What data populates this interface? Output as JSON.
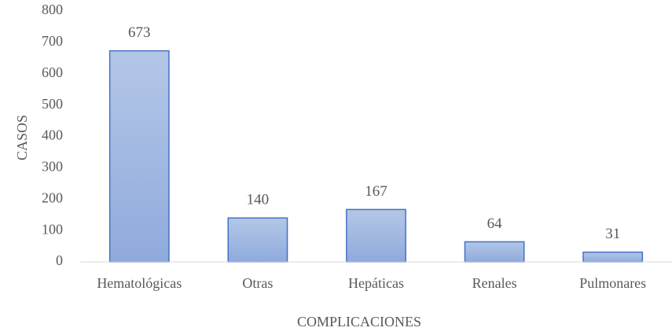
{
  "chart_data": {
    "type": "bar",
    "categories": [
      "Hematológicas",
      "Otras",
      "Hepáticas",
      "Renales",
      "Pulmonares"
    ],
    "values": [
      673,
      140,
      167,
      64,
      31
    ],
    "color": "#8faadc",
    "edgecolor": "#4472c4",
    "ylim": [
      0,
      800
    ],
    "yticks": [
      0,
      100,
      200,
      300,
      400,
      500,
      600,
      700,
      800
    ],
    "ylabel": "CASOS",
    "xlabel": "COMPLICACIONES",
    "grid": false
  }
}
